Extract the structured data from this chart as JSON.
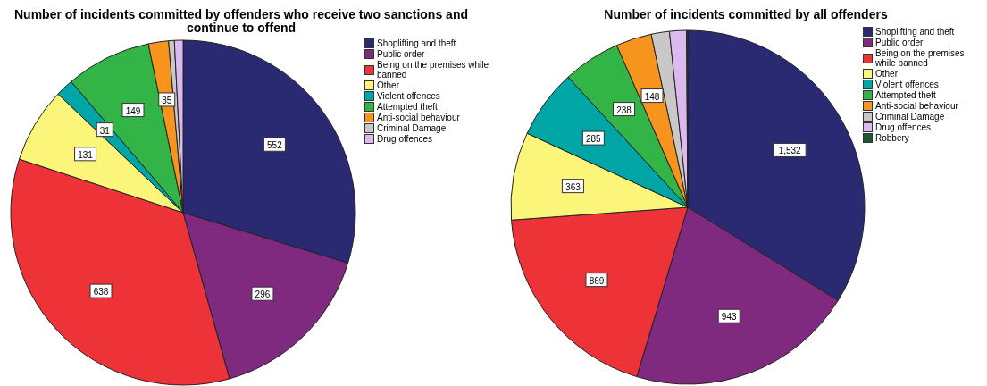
{
  "chart_data": [
    {
      "type": "pie",
      "title": "Number of incidents committed by offenders who receive two sanctions and continue to offend",
      "categories": [
        "Shoplifting and theft",
        "Public order",
        "Being on the premises while banned",
        "Other",
        "Violent offences",
        "Attempted theft",
        "Anti-social behaviour",
        "Criminal Damage",
        "Drug offences"
      ],
      "values": [
        552,
        296,
        638,
        131,
        31,
        149,
        35,
        10,
        15
      ],
      "value_labels": [
        "552",
        "296",
        "638",
        "131",
        "31",
        "149",
        "35",
        null,
        null
      ],
      "colors": [
        "#2a2a72",
        "#7f2a7f",
        "#ee3338",
        "#fbf67a",
        "#00a5a5",
        "#33b447",
        "#f7941d",
        "#c8c8c8",
        "#dcbaf0"
      ],
      "legend": "top right"
    },
    {
      "type": "pie",
      "title": "Number of incidents committed by all offenders",
      "categories": [
        "Shoplifting and theft",
        "Public order",
        "Being on the premises while banned",
        "Other",
        "Violent offences",
        "Attempted theft",
        "Anti-social behaviour",
        "Criminal Damage",
        "Drug offences",
        "Robbery"
      ],
      "values": [
        1532,
        943,
        869,
        363,
        285,
        238,
        148,
        75,
        70,
        5
      ],
      "value_labels": [
        "1,532",
        "943",
        "869",
        "363",
        "285",
        "238",
        "148",
        null,
        null,
        null
      ],
      "colors": [
        "#2a2a72",
        "#7f2a7f",
        "#ee3338",
        "#fbf67a",
        "#00a5a5",
        "#33b447",
        "#f7941d",
        "#c8c8c8",
        "#dcbaf0",
        "#1a5a32"
      ],
      "legend": "top right"
    }
  ]
}
